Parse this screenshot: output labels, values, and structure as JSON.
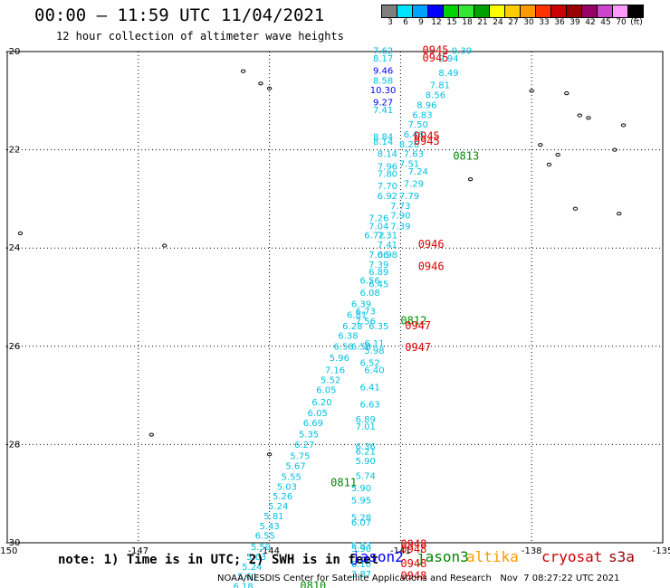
{
  "header": {
    "title": "00:00 — 11:59 UTC 11/04/2021",
    "subtitle": "12 hour collection of altimeter wave heights"
  },
  "colorbar": {
    "colors": [
      "#7f7f7f",
      "#00e5ff",
      "#00a2ff",
      "#0000ff",
      "#00d100",
      "#33e833",
      "#00a000",
      "#ffff00",
      "#ffcc00",
      "#ff9900",
      "#ff3300",
      "#cc0000",
      "#990000",
      "#990066",
      "#cc44cc",
      "#ff99ff",
      "#000000"
    ],
    "labels": [
      "3",
      "6",
      "9",
      "12",
      "15",
      "18",
      "21",
      "24",
      "27",
      "30",
      "33",
      "36",
      "39",
      "42",
      "45",
      "70",
      "(ft)"
    ]
  },
  "footer": {
    "note": "note: 1) Time is in UTC; 2) SWH is in feet",
    "satellites": [
      {
        "name": "jason2",
        "color": "#0000ff"
      },
      {
        "name": "jason3",
        "color": "#008800"
      },
      {
        "name": "altika",
        "color": "#ff9900"
      },
      {
        "name": "cryosat",
        "color": "#cc0000"
      },
      {
        "name": "s3a",
        "color": "#990000"
      }
    ],
    "credit": "NOAA/NESDIS Center for Satellite Applications and Research   Nov  7 08:27:22 UTC 2021"
  },
  "chart_data": {
    "type": "scatter",
    "xlim": [
      -150,
      -135
    ],
    "ylim": [
      -30,
      -20
    ],
    "x_ticks": [
      "-150",
      "-147",
      "-144",
      "-141",
      "-138",
      "-135"
    ],
    "y_ticks": [
      "-20",
      "-22",
      "-24",
      "-26",
      "-28",
      "-30"
    ],
    "grid": true,
    "points": [
      {
        "lon": -141.4,
        "lat": -20.05,
        "text": "7.62",
        "color": "#00c0e0"
      },
      {
        "lon": -141.4,
        "lat": -20.2,
        "text": "8.17",
        "color": "#00c0e0"
      },
      {
        "lon": -139.6,
        "lat": -20.05,
        "text": "9.39",
        "color": "#00c0e0"
      },
      {
        "lon": -139.9,
        "lat": -20.2,
        "text": "9.94",
        "color": "#00c0e0"
      },
      {
        "lon": -139.9,
        "lat": -20.5,
        "text": "8.49",
        "color": "#00c0e0"
      },
      {
        "lon": -140.1,
        "lat": -20.75,
        "text": "7.81",
        "color": "#00c0e0"
      },
      {
        "lon": -140.2,
        "lat": -20.95,
        "text": "8.56",
        "color": "#00c0e0"
      },
      {
        "lon": -140.4,
        "lat": -21.15,
        "text": "8.96",
        "color": "#00c0e0"
      },
      {
        "lon": -140.5,
        "lat": -21.35,
        "text": "6.83",
        "color": "#00c0e0"
      },
      {
        "lon": -140.6,
        "lat": -21.55,
        "text": "7.50",
        "color": "#00c0e0"
      },
      {
        "lon": -140.7,
        "lat": -21.75,
        "text": "6.46",
        "color": "#00c0e0"
      },
      {
        "lon": -141.4,
        "lat": -20.45,
        "text": "9.46",
        "color": "#0000ff"
      },
      {
        "lon": -141.4,
        "lat": -20.65,
        "text": "8.58",
        "color": "#00c0e0"
      },
      {
        "lon": -141.4,
        "lat": -20.85,
        "text": "10.30",
        "color": "#0000ff"
      },
      {
        "lon": -141.4,
        "lat": -21.1,
        "text": "9.27",
        "color": "#0000ff"
      },
      {
        "lon": -141.4,
        "lat": -21.25,
        "text": "7.41",
        "color": "#00c0e0"
      },
      {
        "lon": -141.4,
        "lat": -21.8,
        "text": "8.84",
        "color": "#00c0e0"
      },
      {
        "lon": -141.4,
        "lat": -21.9,
        "text": "8.14",
        "color": "#00c0e0"
      },
      {
        "lon": -141.3,
        "lat": -22.15,
        "text": "8.14",
        "color": "#00c0e0"
      },
      {
        "lon": -140.8,
        "lat": -21.95,
        "text": "8.26",
        "color": "#00c0e0"
      },
      {
        "lon": -140.7,
        "lat": -22.15,
        "text": "7.63",
        "color": "#00c0e0"
      },
      {
        "lon": -140.8,
        "lat": -22.35,
        "text": "7.51",
        "color": "#00c0e0"
      },
      {
        "lon": -140.6,
        "lat": -22.5,
        "text": "7.24",
        "color": "#00c0e0"
      },
      {
        "lon": -141.3,
        "lat": -22.4,
        "text": "7.96",
        "color": "#00c0e0"
      },
      {
        "lon": -141.3,
        "lat": -22.55,
        "text": "7.80",
        "color": "#00c0e0"
      },
      {
        "lon": -141.3,
        "lat": -22.8,
        "text": "7.70",
        "color": "#00c0e0"
      },
      {
        "lon": -140.7,
        "lat": -22.75,
        "text": "7.29",
        "color": "#00c0e0"
      },
      {
        "lon": -141.3,
        "lat": -23.0,
        "text": "6.92",
        "color": "#00c0e0"
      },
      {
        "lon": -140.8,
        "lat": -23.0,
        "text": "7.79",
        "color": "#00c0e0"
      },
      {
        "lon": -141.0,
        "lat": -23.2,
        "text": "7.73",
        "color": "#00c0e0"
      },
      {
        "lon": -141.5,
        "lat": -23.45,
        "text": "7.26",
        "color": "#00c0e0"
      },
      {
        "lon": -141.0,
        "lat": -23.4,
        "text": "7.90",
        "color": "#00c0e0"
      },
      {
        "lon": -141.5,
        "lat": -23.62,
        "text": "7.04",
        "color": "#00c0e0"
      },
      {
        "lon": -141.0,
        "lat": -23.62,
        "text": "7.39",
        "color": "#00c0e0"
      },
      {
        "lon": -141.6,
        "lat": -23.8,
        "text": "6.72",
        "color": "#00c0e0"
      },
      {
        "lon": -141.3,
        "lat": -23.8,
        "text": "7.31",
        "color": "#00c0e0"
      },
      {
        "lon": -141.3,
        "lat": -24.0,
        "text": "7.41",
        "color": "#00c0e0"
      },
      {
        "lon": -141.5,
        "lat": -24.2,
        "text": "7.06",
        "color": "#00c0e0"
      },
      {
        "lon": -141.3,
        "lat": -24.2,
        "text": "6.98",
        "color": "#00c0e0"
      },
      {
        "lon": -141.5,
        "lat": -24.4,
        "text": "7.39",
        "color": "#00c0e0"
      },
      {
        "lon": -141.5,
        "lat": -24.55,
        "text": "6.89",
        "color": "#00c0e0"
      },
      {
        "lon": -141.7,
        "lat": -24.72,
        "text": "6.56",
        "color": "#00c0e0"
      },
      {
        "lon": -141.5,
        "lat": -24.8,
        "text": "6.45",
        "color": "#00c0e0"
      },
      {
        "lon": -141.7,
        "lat": -24.97,
        "text": "6.08",
        "color": "#00c0e0"
      },
      {
        "lon": -141.9,
        "lat": -25.2,
        "text": "6.39",
        "color": "#00c0e0"
      },
      {
        "lon": -142.0,
        "lat": -25.42,
        "text": "6.81",
        "color": "#00c0e0"
      },
      {
        "lon": -141.8,
        "lat": -25.35,
        "text": "6.73",
        "color": "#00c0e0"
      },
      {
        "lon": -142.1,
        "lat": -25.65,
        "text": "6.28",
        "color": "#00c0e0"
      },
      {
        "lon": -141.8,
        "lat": -25.55,
        "text": "7.56",
        "color": "#00c0e0"
      },
      {
        "lon": -141.5,
        "lat": -25.65,
        "text": "6.35",
        "color": "#00c0e0"
      },
      {
        "lon": -142.2,
        "lat": -25.85,
        "text": "6.38",
        "color": "#00c0e0"
      },
      {
        "lon": -142.3,
        "lat": -26.07,
        "text": "6.58",
        "color": "#00c0e0"
      },
      {
        "lon": -141.9,
        "lat": -26.07,
        "text": "6.58",
        "color": "#00c0e0"
      },
      {
        "lon": -141.6,
        "lat": -26.0,
        "text": "6.11",
        "color": "#00c0e0"
      },
      {
        "lon": -141.6,
        "lat": -26.15,
        "text": "5.98",
        "color": "#00c0e0"
      },
      {
        "lon": -142.4,
        "lat": -26.3,
        "text": "5.96",
        "color": "#00c0e0"
      },
      {
        "lon": -141.7,
        "lat": -26.4,
        "text": "6.52",
        "color": "#00c0e0"
      },
      {
        "lon": -142.5,
        "lat": -26.55,
        "text": "7.16",
        "color": "#00c0e0"
      },
      {
        "lon": -141.6,
        "lat": -26.55,
        "text": "6.40",
        "color": "#00c0e0"
      },
      {
        "lon": -142.6,
        "lat": -26.75,
        "text": "5.52",
        "color": "#00c0e0"
      },
      {
        "lon": -142.7,
        "lat": -26.95,
        "text": "6.05",
        "color": "#00c0e0"
      },
      {
        "lon": -141.7,
        "lat": -26.9,
        "text": "6.41",
        "color": "#00c0e0"
      },
      {
        "lon": -142.8,
        "lat": -27.2,
        "text": "6.20",
        "color": "#00c0e0"
      },
      {
        "lon": -141.7,
        "lat": -27.25,
        "text": "6.63",
        "color": "#00c0e0"
      },
      {
        "lon": -142.9,
        "lat": -27.42,
        "text": "6.05",
        "color": "#00c0e0"
      },
      {
        "lon": -143.0,
        "lat": -27.62,
        "text": "6.69",
        "color": "#00c0e0"
      },
      {
        "lon": -141.8,
        "lat": -27.55,
        "text": "6.89",
        "color": "#00c0e0"
      },
      {
        "lon": -141.8,
        "lat": -27.7,
        "text": "7.01",
        "color": "#00c0e0"
      },
      {
        "lon": -143.1,
        "lat": -27.85,
        "text": "5.35",
        "color": "#00c0e0"
      },
      {
        "lon": -143.2,
        "lat": -28.07,
        "text": "6.27",
        "color": "#00c0e0"
      },
      {
        "lon": -141.8,
        "lat": -28.1,
        "text": "6.36",
        "color": "#00c0e0"
      },
      {
        "lon": -141.8,
        "lat": -28.2,
        "text": "6.21",
        "color": "#00c0e0"
      },
      {
        "lon": -143.3,
        "lat": -28.3,
        "text": "5.75",
        "color": "#00c0e0"
      },
      {
        "lon": -141.8,
        "lat": -28.4,
        "text": "5.90",
        "color": "#00c0e0"
      },
      {
        "lon": -143.4,
        "lat": -28.5,
        "text": "5.67",
        "color": "#00c0e0"
      },
      {
        "lon": -143.5,
        "lat": -28.72,
        "text": "5.55",
        "color": "#00c0e0"
      },
      {
        "lon": -141.8,
        "lat": -28.7,
        "text": "5.74",
        "color": "#00c0e0"
      },
      {
        "lon": -143.6,
        "lat": -28.92,
        "text": "5.03",
        "color": "#00c0e0"
      },
      {
        "lon": -141.9,
        "lat": -28.95,
        "text": "5.90",
        "color": "#00c0e0"
      },
      {
        "lon": -143.7,
        "lat": -29.12,
        "text": "5.26",
        "color": "#00c0e0"
      },
      {
        "lon": -141.9,
        "lat": -29.2,
        "text": "5.95",
        "color": "#00c0e0"
      },
      {
        "lon": -143.8,
        "lat": -29.32,
        "text": "5.24",
        "color": "#00c0e0"
      },
      {
        "lon": -143.9,
        "lat": -29.52,
        "text": "5.81",
        "color": "#00c0e0"
      },
      {
        "lon": -141.9,
        "lat": -29.55,
        "text": "5.28",
        "color": "#00c0e0"
      },
      {
        "lon": -141.9,
        "lat": -29.65,
        "text": "6.07",
        "color": "#00c0e0"
      },
      {
        "lon": -144.0,
        "lat": -29.72,
        "text": "5.43",
        "color": "#00c0e0"
      },
      {
        "lon": -144.1,
        "lat": -29.92,
        "text": "6.55",
        "color": "#00c0e0"
      },
      {
        "lon": -144.2,
        "lat": -30.15,
        "text": "5.59",
        "color": "#00c0e0"
      },
      {
        "lon": -141.9,
        "lat": -30.12,
        "text": "5.83",
        "color": "#00c0e0"
      },
      {
        "lon": -141.9,
        "lat": -30.18,
        "text": "5.90",
        "color": "#00c0e0"
      },
      {
        "lon": -144.3,
        "lat": -30.35,
        "text": "5.63",
        "color": "#00c0e0"
      },
      {
        "lon": -144.4,
        "lat": -30.55,
        "text": "5.24",
        "color": "#00c0e0"
      },
      {
        "lon": -141.9,
        "lat": -30.5,
        "text": "6.10",
        "color": "#00c0e0"
      },
      {
        "lon": -144.5,
        "lat": -30.75,
        "text": "5.61",
        "color": "#00c0e0"
      },
      {
        "lon": -141.9,
        "lat": -30.7,
        "text": "3.87",
        "color": "#00c0e0"
      },
      {
        "lon": -144.6,
        "lat": -30.95,
        "text": "6.18",
        "color": "#00c0e0"
      }
    ],
    "time_labels": [
      {
        "lon": -140.5,
        "lat": -20.05,
        "text": "0945",
        "color": "#dd0000"
      },
      {
        "lon": -140.5,
        "lat": -20.2,
        "text": "0945",
        "color": "#dd0000"
      },
      {
        "lon": -140.7,
        "lat": -21.8,
        "text": "0945",
        "color": "#dd0000"
      },
      {
        "lon": -140.7,
        "lat": -21.9,
        "text": "0945",
        "color": "#dd0000"
      },
      {
        "lon": -139.8,
        "lat": -22.2,
        "text": "0813",
        "color": "#008800"
      },
      {
        "lon": -140.6,
        "lat": -24.0,
        "text": "0946",
        "color": "#dd0000"
      },
      {
        "lon": -140.6,
        "lat": -24.45,
        "text": "0946",
        "color": "#dd0000"
      },
      {
        "lon": -141.0,
        "lat": -25.55,
        "text": "0812",
        "color": "#008800"
      },
      {
        "lon": -140.9,
        "lat": -25.65,
        "text": "0947",
        "color": "#dd0000"
      },
      {
        "lon": -140.9,
        "lat": -26.1,
        "text": "0947",
        "color": "#dd0000"
      },
      {
        "lon": -142.6,
        "lat": -28.85,
        "text": "0811",
        "color": "#008800"
      },
      {
        "lon": -141.0,
        "lat": -30.1,
        "text": "0948",
        "color": "#dd0000"
      },
      {
        "lon": -141.0,
        "lat": -30.2,
        "text": "0948",
        "color": "#dd0000"
      },
      {
        "lon": -141.0,
        "lat": -30.5,
        "text": "0948",
        "color": "#dd0000"
      },
      {
        "lon": -141.0,
        "lat": -30.75,
        "text": "0948",
        "color": "#dd0000"
      },
      {
        "lon": -143.3,
        "lat": -30.95,
        "text": "0810",
        "color": "#008800"
      }
    ]
  }
}
